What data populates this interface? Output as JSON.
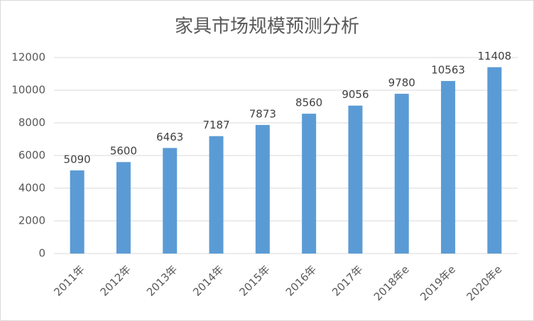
{
  "chart_data": {
    "type": "bar",
    "title": "家具市场规模预测分析",
    "categories": [
      "2011年",
      "2012年",
      "2013年",
      "2014年",
      "2015年",
      "2016年",
      "2017年",
      "2018年e",
      "2019年e",
      "2020年e"
    ],
    "values": [
      5090,
      5600,
      6463,
      7187,
      7873,
      8560,
      9056,
      9780,
      10563,
      11408
    ],
    "color": "#5b9bd5",
    "ylim": [
      0,
      12000
    ],
    "yticks": [
      0,
      2000,
      4000,
      6000,
      8000,
      10000,
      12000
    ],
    "grid": true
  }
}
